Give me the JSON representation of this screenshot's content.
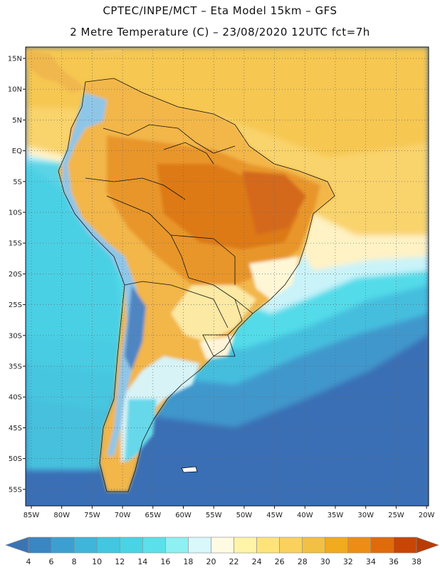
{
  "title_line1": "CPTEC/INPE/MCT –  Eta Model 15km – GFS",
  "title_line2": "2 Metre Temperature (C) – 23/08/2020 12UTC fct=7h",
  "lat_labels": [
    "15N",
    "10N",
    "5N",
    "EQ",
    "5S",
    "10S",
    "15S",
    "20S",
    "25S",
    "30S",
    "35S",
    "40S",
    "45S",
    "50S",
    "55S"
  ],
  "lon_labels": [
    "85W",
    "80W",
    "75W",
    "70W",
    "65W",
    "60W",
    "55W",
    "50W",
    "45W",
    "40W",
    "35W",
    "30W",
    "25W",
    "20W"
  ],
  "colorbar": {
    "labels": [
      "4",
      "6",
      "8",
      "10",
      "12",
      "14",
      "16",
      "18",
      "20",
      "22",
      "24",
      "26",
      "28",
      "30",
      "32",
      "34",
      "36",
      "38"
    ],
    "colors": [
      "#3b74b4",
      "#3a86c2",
      "#3d9fd0",
      "#3fb5da",
      "#43c6df",
      "#48d4e4",
      "#5be0ea",
      "#8ef0f2",
      "#d8f8fb",
      "#fffbe3",
      "#fff4a8",
      "#ffe37a",
      "#f9d25d",
      "#f2c043",
      "#f0ab1e",
      "#ec8e16",
      "#e06b0b",
      "#c84506",
      "#b83c04"
    ]
  },
  "colors": {
    "ocean_south_deep": "#3a6fb5",
    "ocean_south_mid": "#3a9ed0",
    "ocean_cyan": "#52dbe9",
    "ocean_light": "#c9f3f9",
    "atlantic_north": "#f7d066",
    "land_warm": "#f2b64a",
    "land_hot": "#e4821d",
    "land_very_hot": "#d66818",
    "andes_cold": "#8ec6e8"
  }
}
